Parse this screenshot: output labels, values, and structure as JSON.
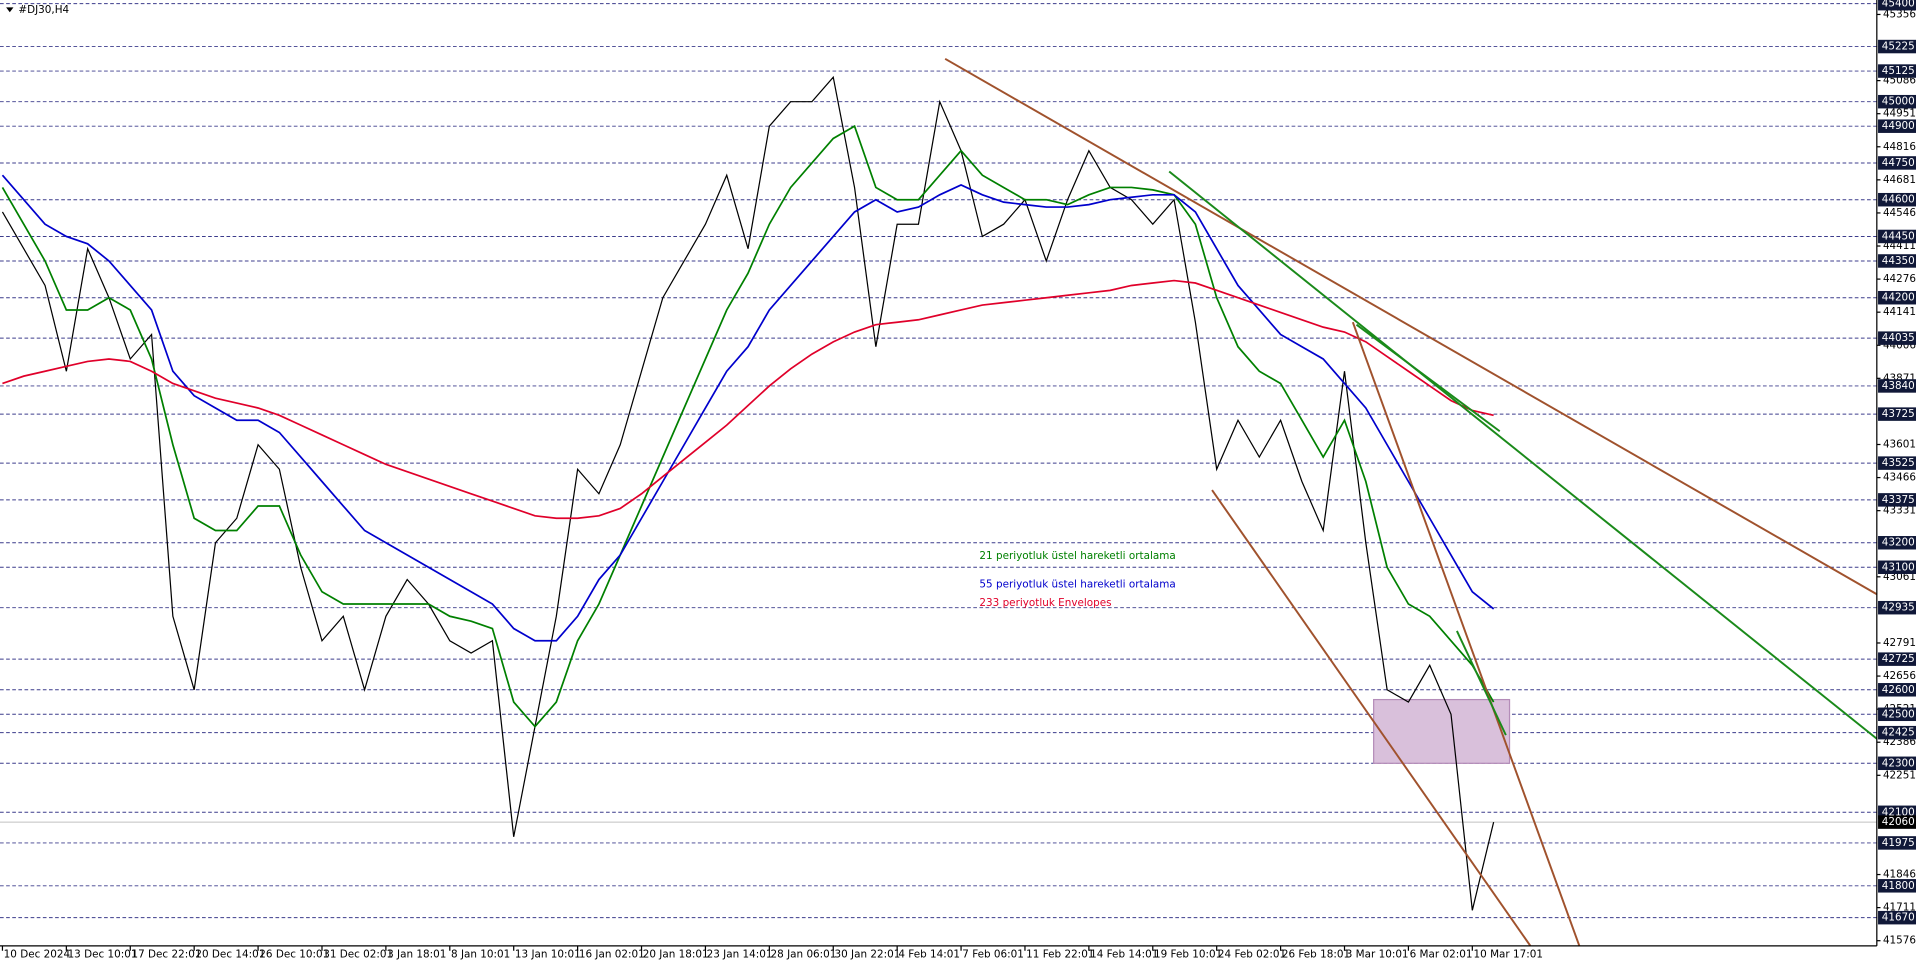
{
  "chart_data": {
    "type": "line",
    "title": "#DJ30,H4",
    "categories": [
      "10 Dec 2024",
      null,
      null,
      "13 Dec 10:01",
      null,
      null,
      "17 Dec 22:01",
      null,
      null,
      "20 Dec 14:01",
      null,
      null,
      "26 Dec 10:01",
      null,
      null,
      "31 Dec 02:01",
      null,
      null,
      "3 Jan 18:01",
      null,
      null,
      "8 Jan 10:01",
      null,
      null,
      "13 Jan 10:01",
      null,
      null,
      "16 Jan 02:01",
      null,
      null,
      "20 Jan 18:01",
      null,
      null,
      "23 Jan 14:01",
      null,
      null,
      "28 Jan 06:01",
      null,
      null,
      "30 Jan 22:01",
      null,
      null,
      "4 Feb 14:01",
      null,
      null,
      "7 Feb 06:01",
      null,
      null,
      "11 Feb 22:01",
      null,
      null,
      "14 Feb 14:01",
      null,
      null,
      "19 Feb 10:01",
      null,
      null,
      "24 Feb 02:01",
      null,
      null,
      "26 Feb 18:01",
      null,
      null,
      "3 Mar 10:01",
      null,
      null,
      "6 Mar 02:01",
      null,
      null,
      "10 Mar 17:01",
      null
    ],
    "series": [
      {
        "color": "#000000",
        "values": [
          44550,
          44400,
          44250,
          43900,
          44400,
          44200,
          43950,
          44050,
          42900,
          42600,
          43200,
          43300,
          43600,
          43500,
          43100,
          42800,
          42900,
          42600,
          42900,
          43050,
          42950,
          42800,
          42750,
          42800,
          42000,
          42450,
          42900,
          43500,
          43400,
          43600,
          43900,
          44200,
          44350,
          44500,
          44700,
          44400,
          44900,
          45000,
          45000,
          45100,
          44650,
          44000,
          44500,
          44500,
          45000,
          44800,
          44450,
          44500,
          44600,
          44350,
          44600,
          44800,
          44650,
          44600,
          44500,
          44600,
          44100,
          43500,
          43700,
          43550,
          43700,
          43450,
          43250,
          43900,
          43200,
          42600,
          42550,
          42700,
          42500,
          41700,
          42060
        ]
      },
      {
        "name": "21 periyotluk üstel hareketli ortalama",
        "color": "#008000",
        "values": [
          44650,
          44500,
          44350,
          44150,
          44150,
          44200,
          44150,
          43950,
          43600,
          43300,
          43250,
          43250,
          43350,
          43350,
          43150,
          43000,
          42950,
          42950,
          42950,
          42950,
          42950,
          42900,
          42880,
          42850,
          42550,
          42450,
          42550,
          42800,
          42950,
          43150,
          43350,
          43550,
          43750,
          43950,
          44150,
          44300,
          44500,
          44650,
          44750,
          44850,
          44900,
          44650,
          44600,
          44600,
          44700,
          44800,
          44700,
          44650,
          44600,
          44600,
          44580,
          44620,
          44650,
          44650,
          44640,
          44620,
          44500,
          44200,
          44000,
          43900,
          43850,
          43700,
          43550,
          43700,
          43450,
          43100,
          42950,
          42900,
          42800,
          42700,
          42550
        ]
      },
      {
        "name": "55 periyotluk üstel hareketli ortalama",
        "color": "#0000cc",
        "values": [
          44700,
          44600,
          44500,
          44450,
          44420,
          44350,
          44250,
          44150,
          43900,
          43800,
          43750,
          43700,
          43700,
          43650,
          43550,
          43450,
          43350,
          43250,
          43200,
          43150,
          43100,
          43050,
          43000,
          42950,
          42850,
          42800,
          42800,
          42900,
          43050,
          43150,
          43300,
          43450,
          43600,
          43750,
          43900,
          44000,
          44150,
          44250,
          44350,
          44450,
          44550,
          44600,
          44550,
          44570,
          44620,
          44660,
          44620,
          44590,
          44580,
          44570,
          44570,
          44580,
          44600,
          44610,
          44620,
          44620,
          44550,
          44400,
          44250,
          44150,
          44050,
          44000,
          43950,
          43850,
          43750,
          43600,
          43450,
          43300,
          43150,
          43000,
          42930
        ]
      },
      {
        "name": "233 periyotluk Envelopes",
        "color": "#e0002a",
        "values": [
          43850,
          43880,
          43900,
          43920,
          43940,
          43950,
          43940,
          43900,
          43850,
          43820,
          43790,
          43770,
          43750,
          43720,
          43680,
          43640,
          43600,
          43560,
          43520,
          43490,
          43460,
          43430,
          43400,
          43370,
          43340,
          43310,
          43300,
          43300,
          43310,
          43340,
          43400,
          43470,
          43540,
          43610,
          43680,
          43760,
          43840,
          43910,
          43970,
          44020,
          44060,
          44090,
          44100,
          44110,
          44130,
          44150,
          44170,
          44180,
          44190,
          44200,
          44210,
          44220,
          44230,
          44250,
          44260,
          44270,
          44260,
          44230,
          44200,
          44170,
          44140,
          44110,
          44080,
          44060,
          44020,
          43960,
          43900,
          43840,
          43780,
          43740,
          43720
        ]
      }
    ],
    "ylim": [
      41555,
      45415
    ],
    "yticks": [
      45356,
      45086,
      44951,
      44816,
      44681,
      44546,
      44411,
      44276,
      44141,
      44006,
      43871,
      43601,
      43466,
      43331,
      43061,
      42791,
      42656,
      42521,
      42386,
      42251,
      41846,
      41711,
      41576
    ],
    "levels": [
      45400,
      45225,
      45125,
      45000,
      44900,
      44750,
      44600,
      44450,
      44350,
      44200,
      44035,
      43840,
      43725,
      43525,
      43375,
      43200,
      43100,
      42935,
      42725,
      42600,
      42500,
      42425,
      42300,
      42100,
      41975,
      41800,
      41670
    ],
    "level_color": "#3c3c8c",
    "current_price": 42060
  }
}
